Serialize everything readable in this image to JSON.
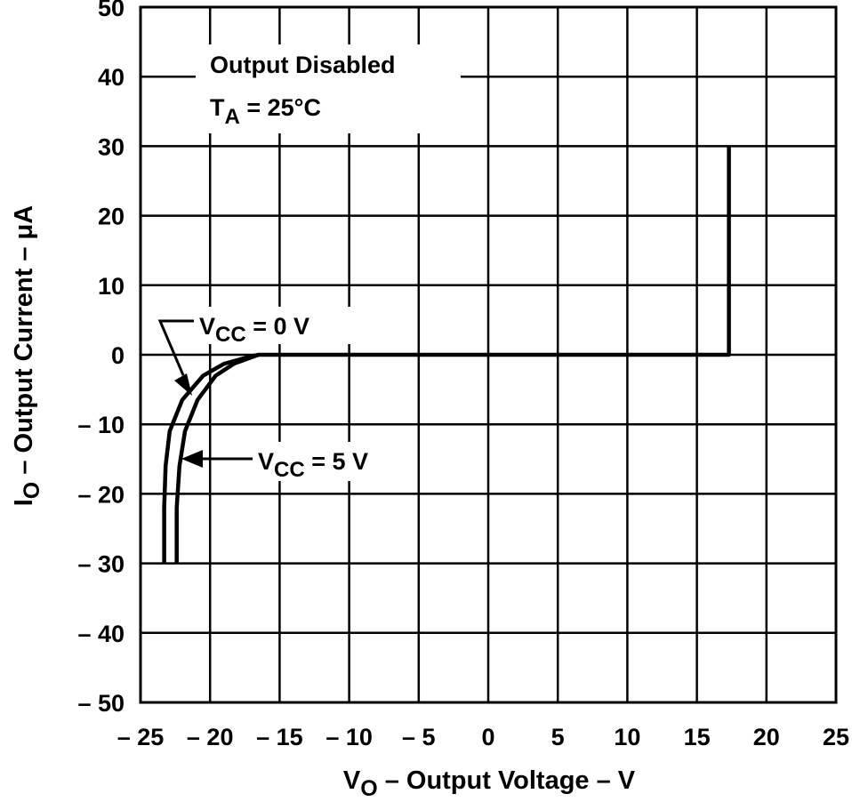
{
  "chart_data": {
    "type": "line",
    "xlabel": {
      "main": "V",
      "sub": "O",
      "rest": " – Output Voltage – V"
    },
    "ylabel": {
      "main": "I",
      "sub": "O",
      "rest": " – Output Current – μA"
    },
    "xlim": [
      -25,
      25
    ],
    "ylim": [
      -50,
      50
    ],
    "x_ticks": [
      -25,
      -20,
      -15,
      -10,
      -5,
      0,
      5,
      10,
      15,
      20,
      25
    ],
    "y_ticks": [
      -50,
      -40,
      -30,
      -20,
      -10,
      0,
      10,
      20,
      30,
      40,
      50
    ],
    "x_tick_labels": [
      "– 25",
      "– 20",
      "– 15",
      "– 10",
      "– 5",
      "0",
      "5",
      "10",
      "15",
      "20",
      "25"
    ],
    "y_tick_labels": [
      "– 50",
      "– 40",
      "– 30",
      "– 20",
      "– 10",
      "0",
      "10",
      "20",
      "30",
      "40",
      "50"
    ],
    "grid": true,
    "annotations": {
      "condition_line1": "Output Disabled",
      "condition_line2_main": "T",
      "condition_line2_sub": "A",
      "condition_line2_rest": " = 25°C",
      "vcc0": {
        "main": "V",
        "sub": "CC",
        "rest": " = 0 V"
      },
      "vcc5": {
        "main": "V",
        "sub": "CC",
        "rest": " = 5 V"
      }
    },
    "series": [
      {
        "points": [
          [
            -23.3,
            -30
          ],
          [
            -23.3,
            -22
          ],
          [
            -23.2,
            -16
          ],
          [
            -22.9,
            -11
          ],
          [
            -22.0,
            -6.5
          ],
          [
            -20.5,
            -3
          ],
          [
            -19.0,
            -1.3
          ],
          [
            -17.0,
            -0.2
          ],
          [
            -16.5,
            0
          ],
          [
            17.3,
            0
          ],
          [
            17.3,
            30
          ]
        ]
      },
      {
        "points": [
          [
            -22.4,
            -30
          ],
          [
            -22.4,
            -22
          ],
          [
            -22.2,
            -16
          ],
          [
            -21.8,
            -11
          ],
          [
            -20.9,
            -6.5
          ],
          [
            -19.6,
            -3
          ],
          [
            -18.3,
            -1.3
          ],
          [
            -16.8,
            -0.2
          ],
          [
            -16.5,
            0
          ]
        ]
      }
    ]
  }
}
